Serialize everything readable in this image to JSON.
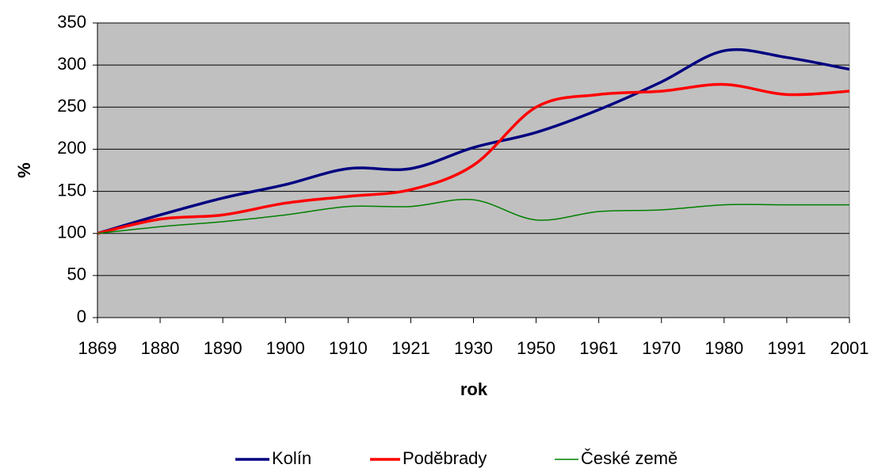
{
  "chart_data": {
    "type": "line",
    "smooth": true,
    "grid": true,
    "plot_background": "#c0c0c0",
    "x_label": "rok",
    "y_label": "%",
    "categories": [
      "1869",
      "1880",
      "1890",
      "1900",
      "1910",
      "1921",
      "1930",
      "1950",
      "1961",
      "1970",
      "1980",
      "1991",
      "2001"
    ],
    "series": [
      {
        "name": "Kolín",
        "color": "#000080",
        "values": [
          100,
          122,
          142,
          158,
          177,
          177,
          202,
          220,
          247,
          280,
          317,
          309,
          295
        ]
      },
      {
        "name": "Poděbrady",
        "color": "#ff0000",
        "values": [
          100,
          117,
          122,
          136,
          144,
          152,
          181,
          250,
          265,
          269,
          277,
          265,
          269
        ]
      },
      {
        "name": "České země",
        "color": "#008000",
        "values": [
          100,
          108,
          114,
          122,
          132,
          132,
          140,
          116,
          126,
          128,
          134,
          134,
          134
        ]
      }
    ],
    "ylim": [
      0,
      350
    ],
    "yticks": [
      0,
      50,
      100,
      150,
      200,
      250,
      300,
      350
    ],
    "legend": "bottom"
  }
}
